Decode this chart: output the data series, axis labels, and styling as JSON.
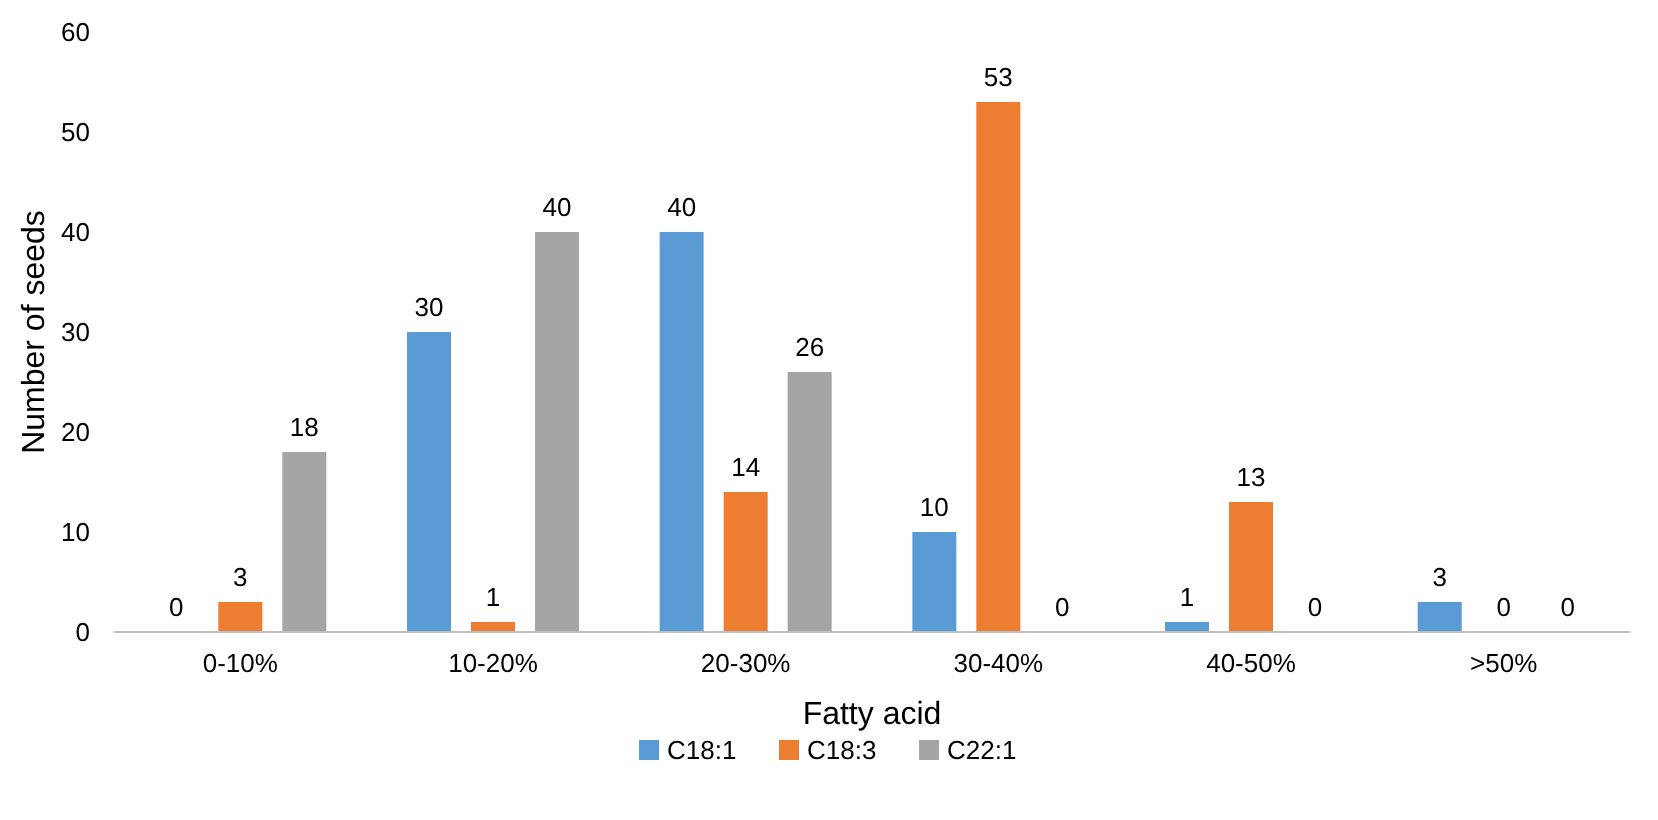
{
  "chart_data": {
    "type": "bar",
    "xlabel": "Fatty acid",
    "ylabel": "Number of seeds",
    "categories": [
      "0-10%",
      "10-20%",
      "20-30%",
      "30-40%",
      "40-50%",
      ">50%"
    ],
    "series": [
      {
        "name": "C18:1",
        "color": "#5b9bd5",
        "values": [
          0,
          30,
          40,
          10,
          1,
          3
        ]
      },
      {
        "name": "C18:3",
        "color": "#ed7d31",
        "values": [
          3,
          1,
          14,
          53,
          13,
          0
        ]
      },
      {
        "name": "C22:1",
        "color": "#a5a5a5",
        "values": [
          18,
          40,
          26,
          0,
          0,
          0
        ]
      }
    ],
    "ylim": [
      0,
      60
    ],
    "yticks": [
      0,
      10,
      20,
      30,
      40,
      50,
      60
    ],
    "data_labels": true,
    "legend": "bottom",
    "grid": false
  }
}
